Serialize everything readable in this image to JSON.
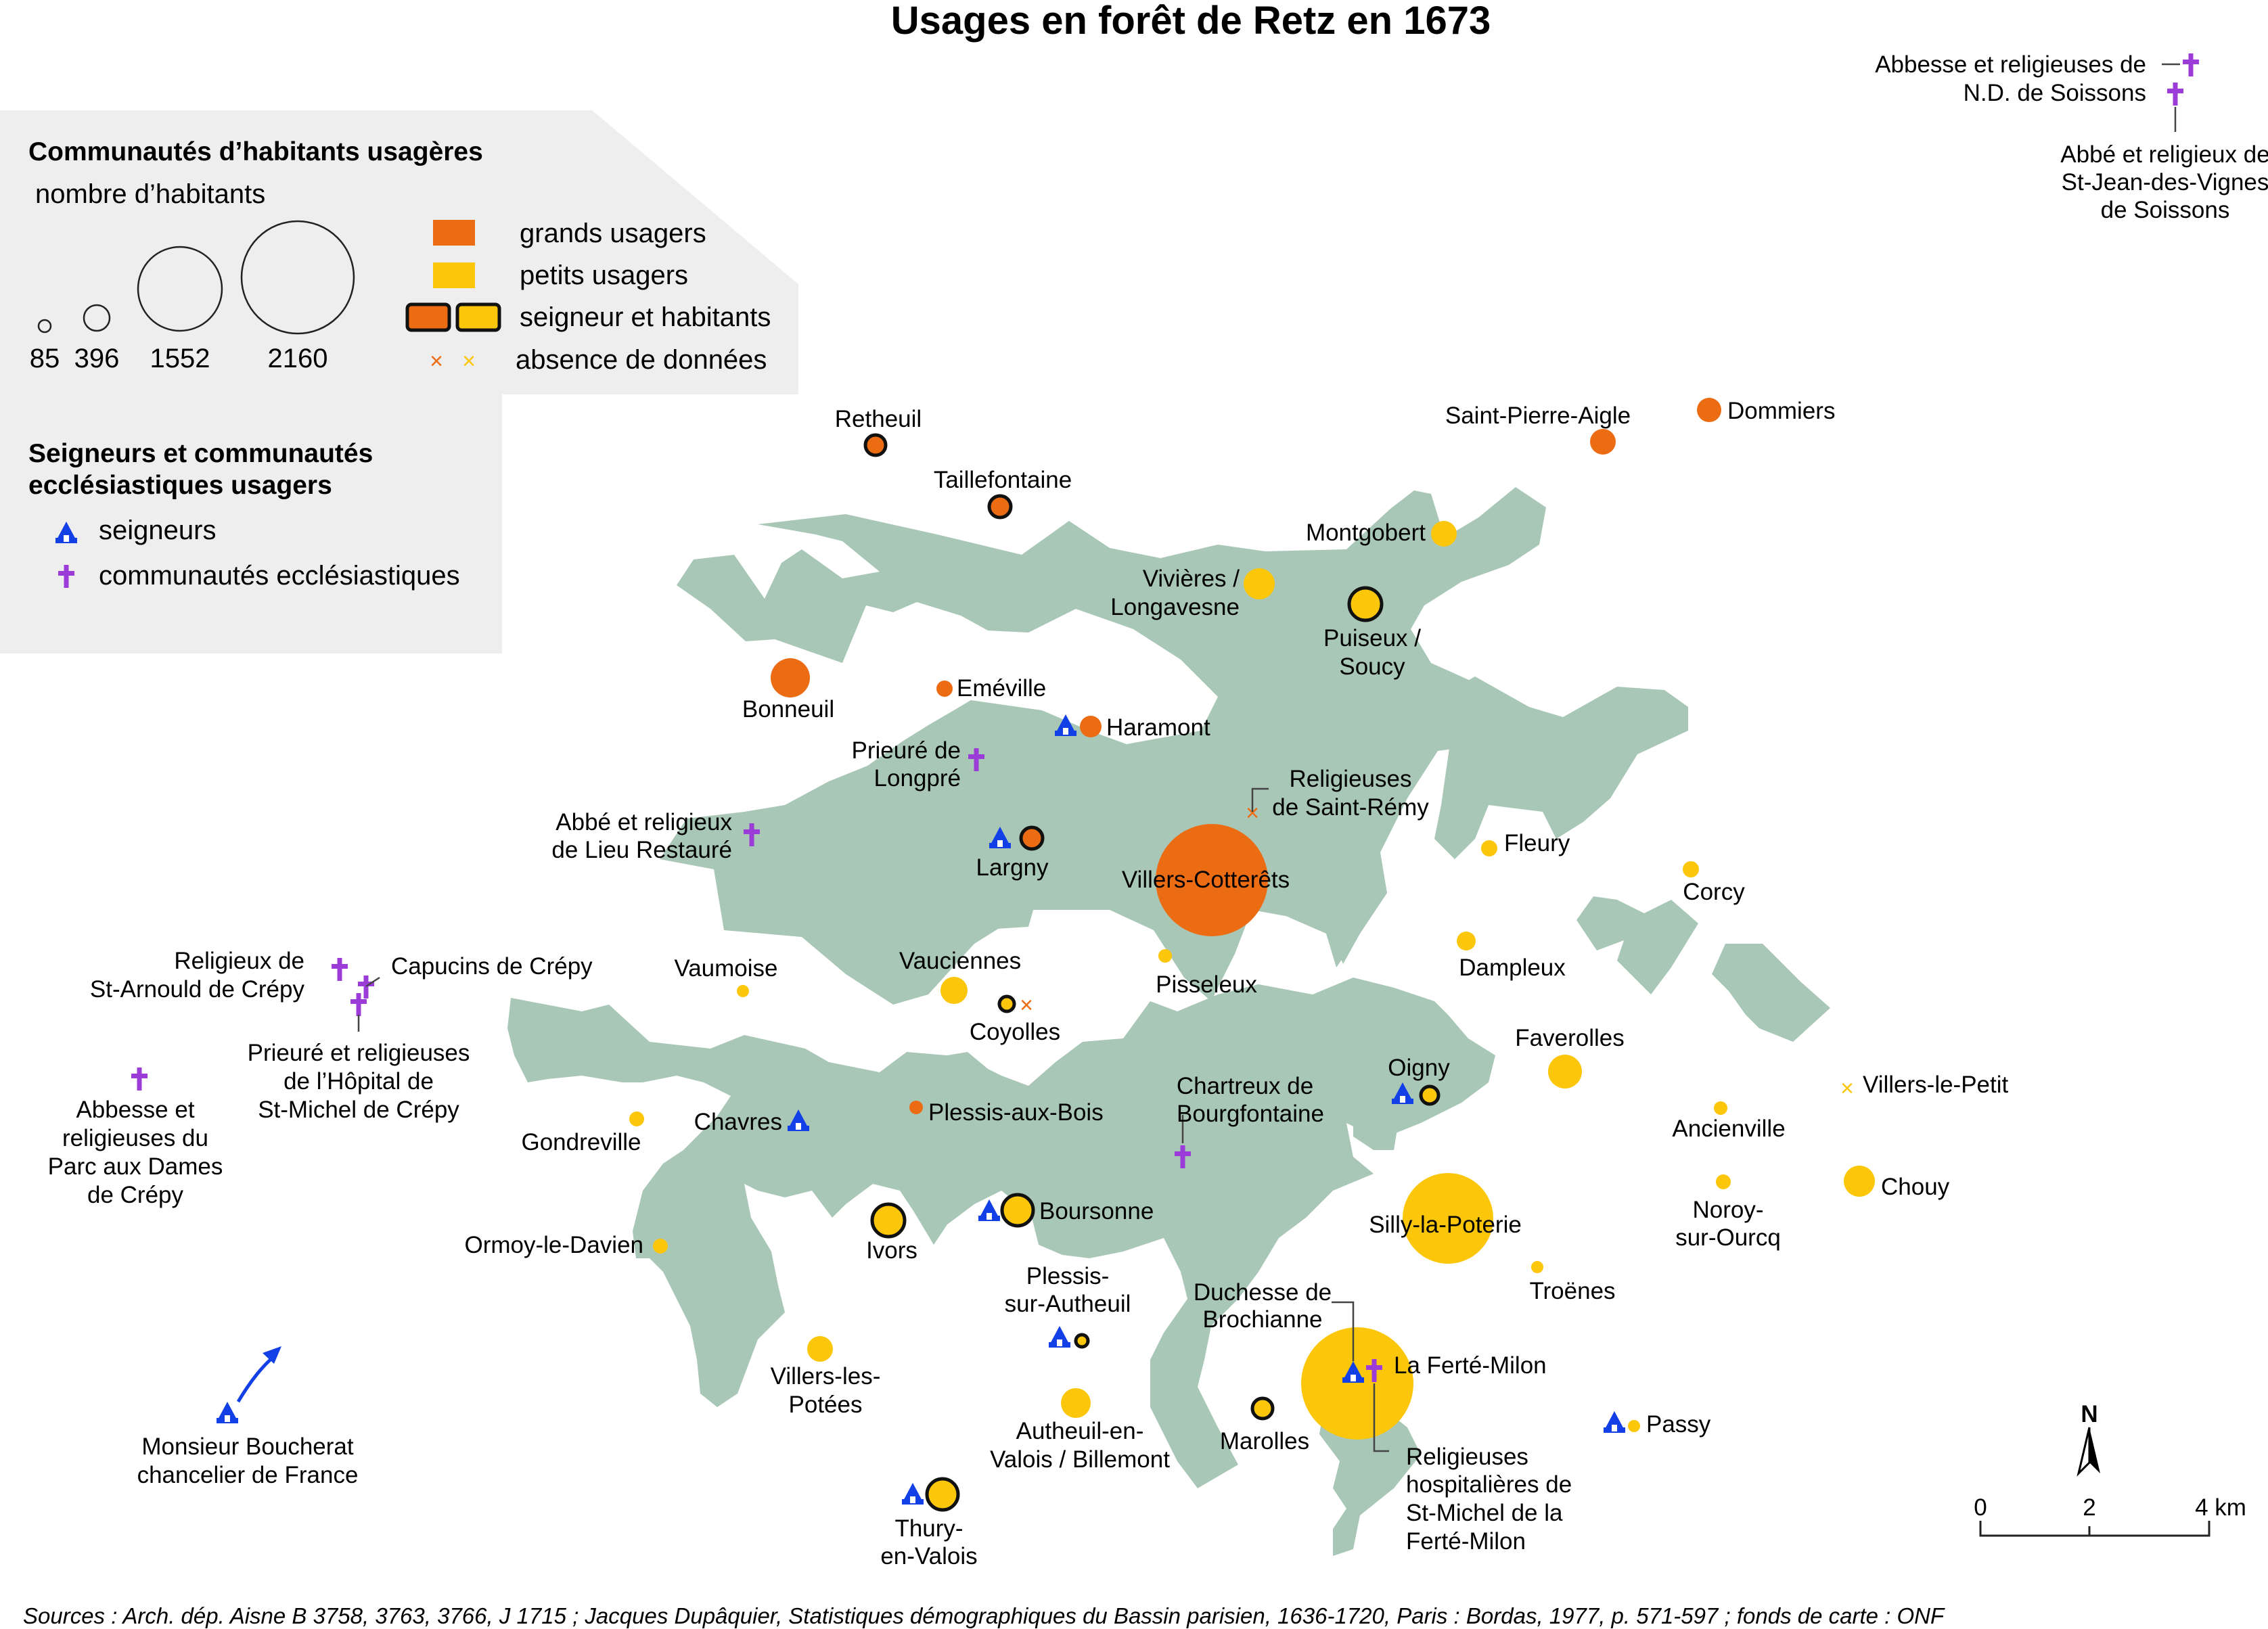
{
  "title": "Usages en forêt de Retz en 1673",
  "legend": {
    "communities_heading": "Communautés d’habitants usagères",
    "size_heading": "nombre d’habitants",
    "size_values": [
      "85",
      "396",
      "1552",
      "2160"
    ],
    "grands": "grands usagers",
    "petits": "petits usagers",
    "seigneur_hab": "seigneur et habitants",
    "absence": "absence de données",
    "lords_heading_1": "Seigneurs et communautés",
    "lords_heading_2": "ecclésiastiques usagers",
    "seigneurs": "seigneurs",
    "ecclesiastiques": "communautés ecclésiastiques"
  },
  "colors": {
    "grands_usagers": "#ec6c14",
    "petits_usagers": "#fcc60a",
    "forest": "#a9c7b6",
    "seigneur_icon": "#1240e6",
    "ecclesiastic_icon": "#9c3cd8",
    "legend_panel": "#eeeeee"
  },
  "labels": {
    "retheuil": "Retheuil",
    "taillefontaine": "Taillefontaine",
    "saint_pierre_aigle": "Saint-Pierre-Aigle",
    "dommiers": "Dommiers",
    "montgobert": "Montgobert",
    "vivieres_1": "Vivières /",
    "vivieres_2": "Longavesne",
    "puiseux_1": "Puiseux /",
    "puiseux_2": "Soucy",
    "bonneuil": "Bonneuil",
    "emeville": "Eméville",
    "haramont": "Haramont",
    "prieure_longpre_1": "Prieuré de",
    "prieure_longpre_2": "Longpré",
    "religieuses_st_remy_1": "Religieuses",
    "religieuses_st_remy_2": "de Saint-Rémy",
    "abbe_lieu_1": "Abbé et religieux",
    "abbe_lieu_2": "de Lieu Restauré",
    "largny": "Largny",
    "villers_cotterets": "Villers-Cotterêts",
    "fleury": "Fleury",
    "corcy": "Corcy",
    "religieux_st_arnould_1": "Religieux de",
    "religieux_st_arnould_2": "St-Arnould de Crépy",
    "capucins": "Capucins de Crépy",
    "vaumoise": "Vaumoise",
    "vauciennes": "Vauciennes",
    "pisseleux": "Pisseleux",
    "dampleux": "Dampleux",
    "coyolles": "Coyolles",
    "prieure_hopital_1": "Prieuré et religieuses",
    "prieure_hopital_2": "de l’Hôpital de",
    "prieure_hopital_3": "St-Michel de Crépy",
    "abbesse_parc_1": "Abbesse et",
    "abbesse_parc_2": "religieuses du",
    "abbesse_parc_3": "Parc aux Dames",
    "abbesse_parc_4": "de Crépy",
    "faverolles": "Faverolles",
    "oigny": "Oigny",
    "chartreux_1": "Chartreux de",
    "chartreux_2": "Bourgfontaine",
    "villers_le_petit": "Villers-le-Petit",
    "ancienville": "Ancienville",
    "gondreville": "Gondreville",
    "chavres": "Chavres",
    "plessis_aux_bois": "Plessis-aux-Bois",
    "chouy": "Chouy",
    "noroy_1": "Noroy-",
    "noroy_2": "sur-Ourcq",
    "ormoy": "Ormoy-le-Davien",
    "ivors": "Ivors",
    "boursonne": "Boursonne",
    "silly": "Silly-la-Poterie",
    "troenes": "Troënes",
    "plessis_autheuil_1": "Plessis-",
    "plessis_autheuil_2": "sur-Autheuil",
    "duchesse_1": "Duchesse de",
    "duchesse_2": "Brochianne",
    "villers_les_potees_1": "Villers-les-",
    "villers_les_potees_2": "Potées",
    "la_ferte_milon": "La Ferté-Milon",
    "autheuil_1": "Autheuil-en-",
    "autheuil_2": "Valois / Billemont",
    "marolles": "Marolles",
    "passy": "Passy",
    "religieuses_hosp_1": "Religieuses",
    "religieuses_hosp_2": "hospitalières de",
    "religieuses_hosp_3": "St-Michel de la",
    "religieuses_hosp_4": "Ferté-Milon",
    "thury_1": "Thury-",
    "thury_2": "en-Valois",
    "boucherat_1": "Monsieur Boucherat",
    "boucherat_2": "chancelier de France",
    "abbesse_soissons_1": "Abbesse et religieuses de",
    "abbesse_soissons_2": "N.D. de Soissons",
    "abbe_st_jean_1": "Abbé et religieux de",
    "abbe_st_jean_2": "St-Jean-des-Vignes",
    "abbe_st_jean_3": "de Soissons"
  },
  "scale": {
    "north": "N",
    "ticks": [
      "0",
      "2",
      "4 km"
    ]
  },
  "source": "Sources : Arch. dép. Aisne B 3758, 3763, 3766, J 1715 ; Jacques Dupâquier, Statistiques démographiques du Bassin parisien, 1636-1720, Paris : Bordas, 1977, p. 571-597 ; fonds de carte : ONF"
}
